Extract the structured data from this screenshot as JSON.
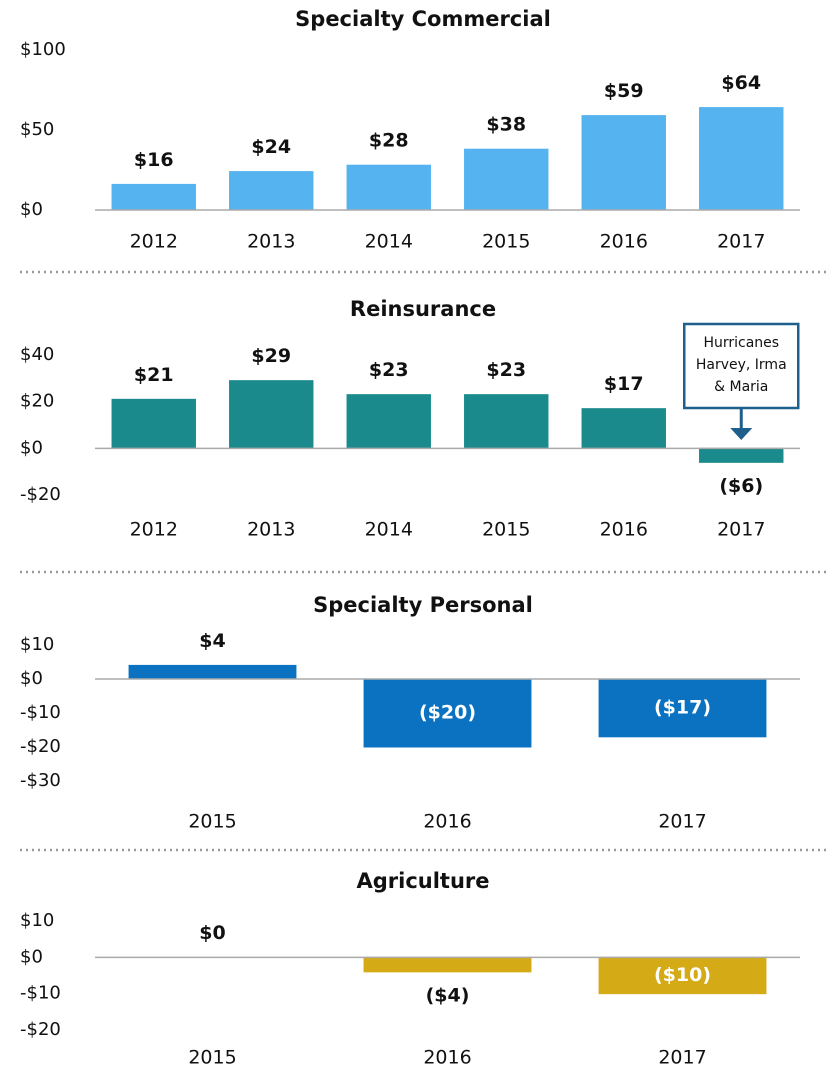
{
  "chart_data": [
    {
      "type": "bar",
      "title": "Specialty Commercial",
      "categories": [
        "2012",
        "2013",
        "2014",
        "2015",
        "2016",
        "2017"
      ],
      "values": [
        16,
        24,
        28,
        38,
        59,
        64
      ],
      "value_labels": [
        "$16",
        "$24",
        "$28",
        "$38",
        "$59",
        "$64"
      ],
      "color": "#55b4f0",
      "ylim": [
        0,
        100
      ],
      "yticks": [
        {
          "value": 0,
          "label": "$0"
        },
        {
          "value": 50,
          "label": "$50"
        },
        {
          "value": 100,
          "label": "$100"
        }
      ]
    },
    {
      "type": "bar",
      "title": "Reinsurance",
      "categories": [
        "2012",
        "2013",
        "2014",
        "2015",
        "2016",
        "2017"
      ],
      "values": [
        21,
        29,
        23,
        23,
        17,
        -6
      ],
      "value_labels": [
        "$21",
        "$29",
        "$23",
        "$23",
        "$17",
        "($6)"
      ],
      "color": "#1b8a8c",
      "ylim": [
        -20,
        40
      ],
      "yticks": [
        {
          "value": -20,
          "label": "-$20"
        },
        {
          "value": 0,
          "label": "$0"
        },
        {
          "value": 20,
          "label": "$20"
        },
        {
          "value": 40,
          "label": "$40"
        }
      ],
      "annotation": [
        "Hurricanes",
        "Harvey, Irma",
        "& Maria"
      ]
    },
    {
      "type": "bar",
      "title": "Specialty Personal",
      "categories": [
        "2015",
        "2016",
        "2017"
      ],
      "values": [
        4,
        -20,
        -17
      ],
      "value_labels": [
        "$4",
        "($20)",
        "($17)"
      ],
      "color": "#0a72c0",
      "ylim": [
        -30,
        10
      ],
      "yticks": [
        {
          "value": -30,
          "label": "-$30"
        },
        {
          "value": -20,
          "label": "-$20"
        },
        {
          "value": -10,
          "label": "-$10"
        },
        {
          "value": 0,
          "label": "$0"
        },
        {
          "value": 10,
          "label": "$10"
        }
      ]
    },
    {
      "type": "bar",
      "title": "Agriculture",
      "categories": [
        "2015",
        "2016",
        "2017"
      ],
      "values": [
        0,
        -4,
        -10
      ],
      "value_labels": [
        "$0",
        "($4)",
        "($10)"
      ],
      "color": "#d4aa17",
      "ylim": [
        -20,
        10
      ],
      "yticks": [
        {
          "value": -20,
          "label": "-$20"
        },
        {
          "value": -10,
          "label": "-$10"
        },
        {
          "value": 0,
          "label": "$0"
        },
        {
          "value": 10,
          "label": "$10"
        }
      ]
    }
  ]
}
